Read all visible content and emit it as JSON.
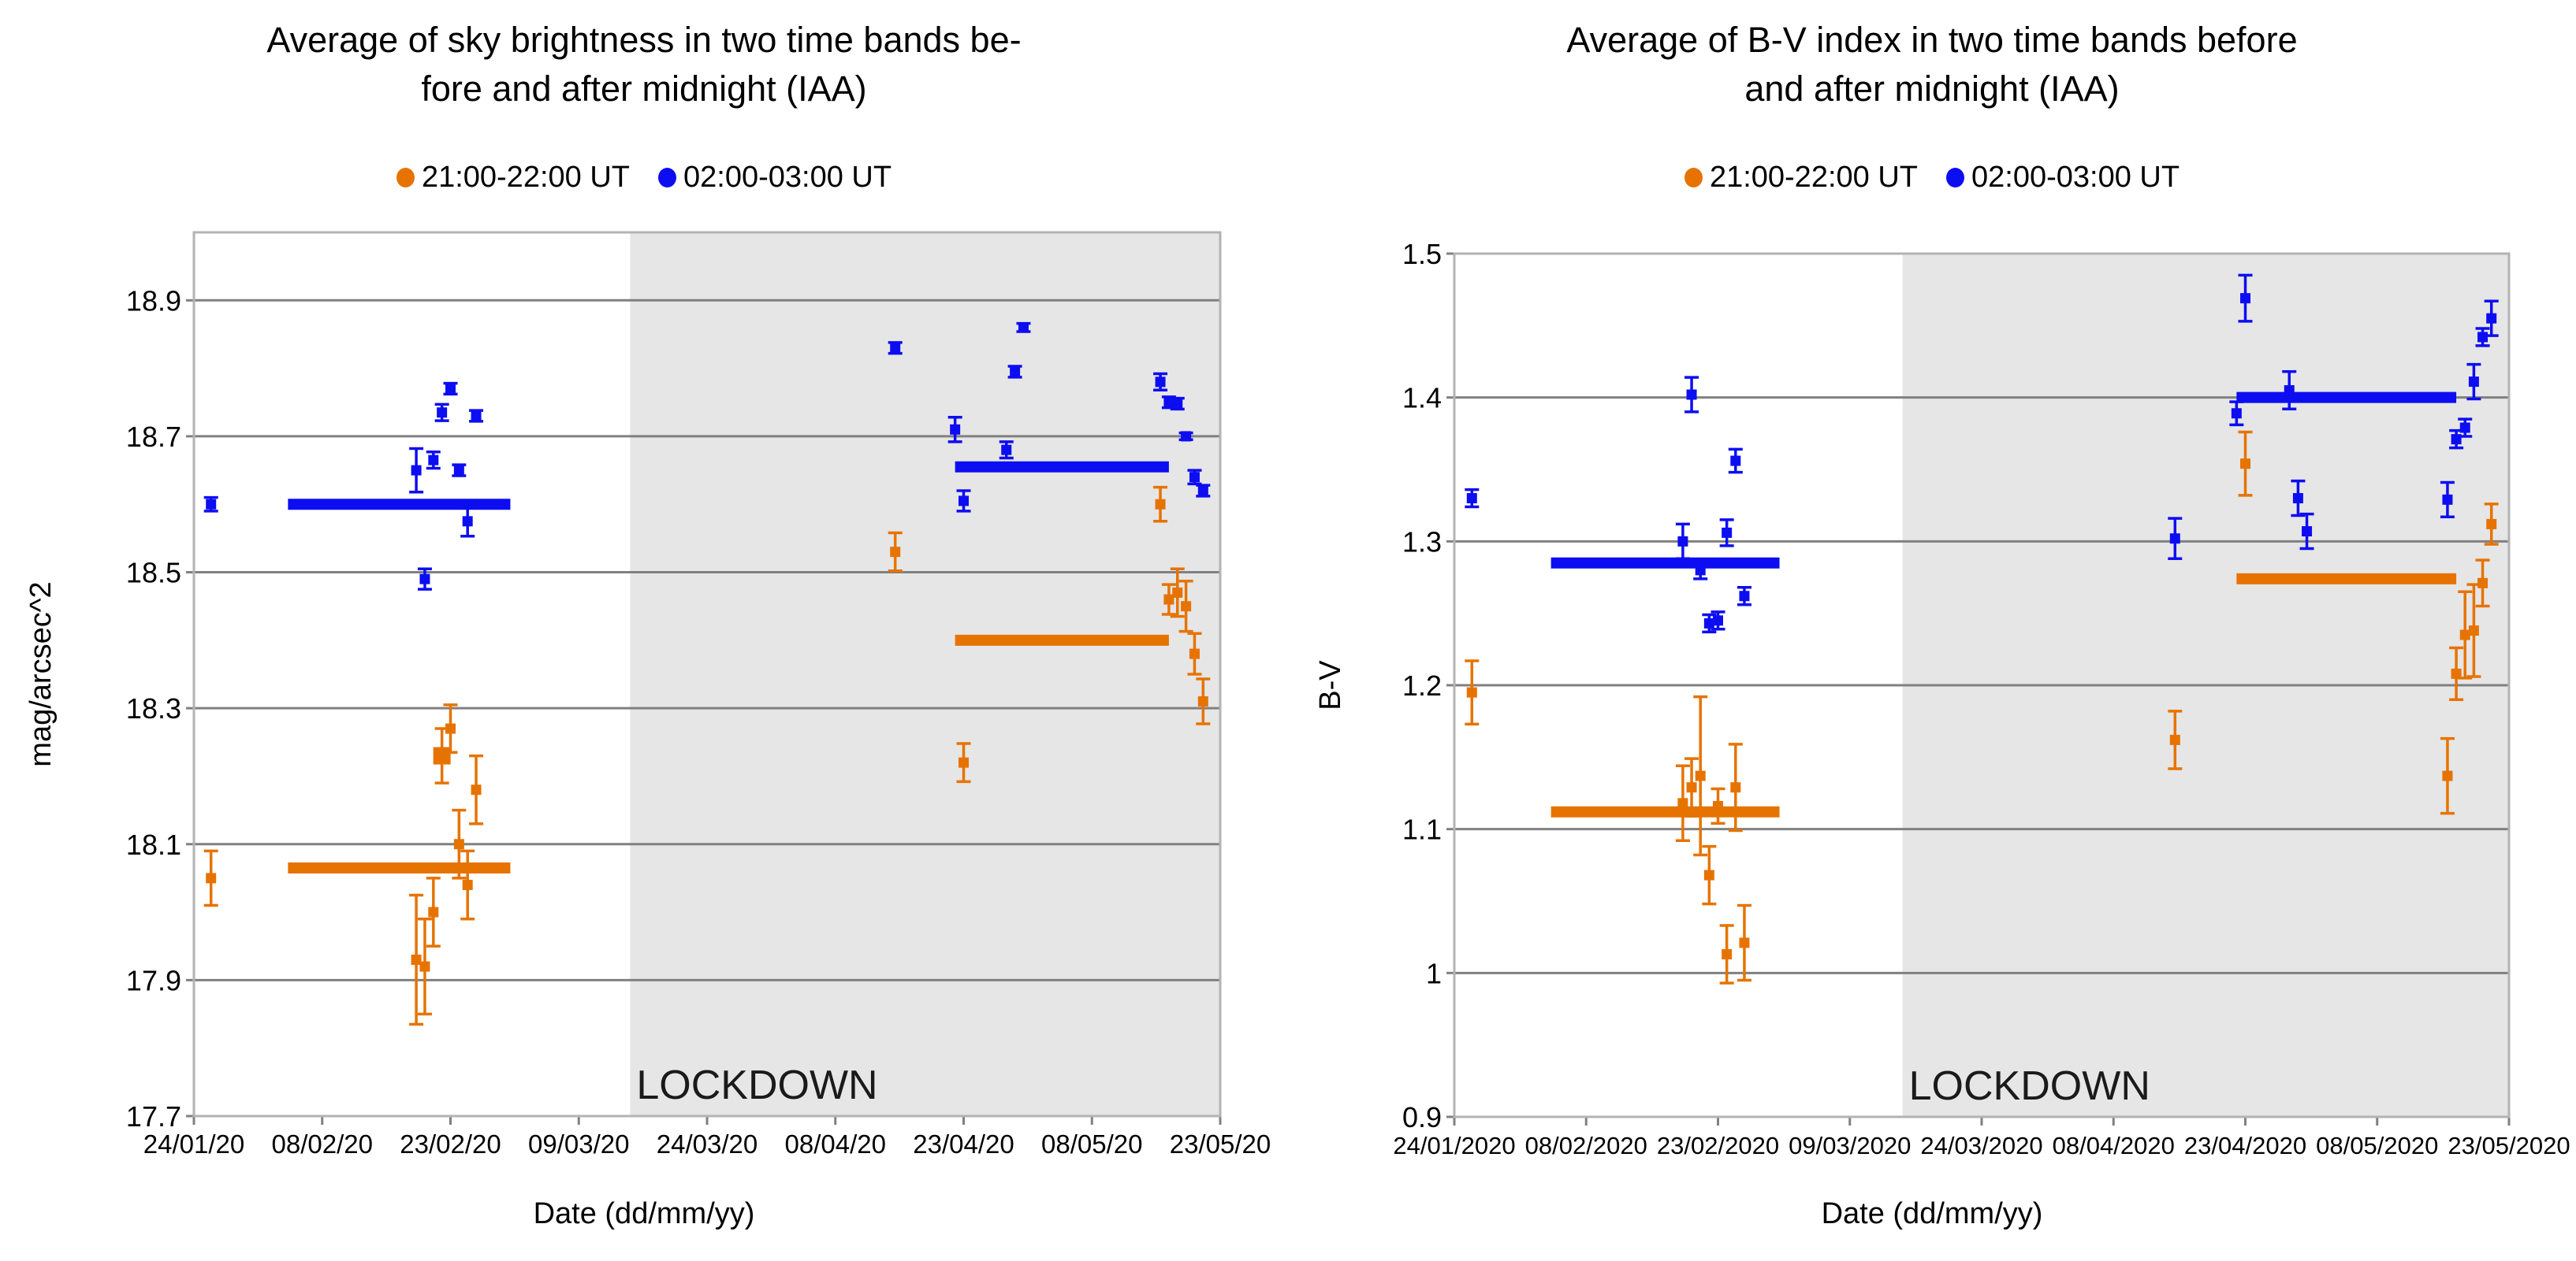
{
  "colors": {
    "evening": "#e67300",
    "morning": "#0d0df2",
    "lockdown_region": "#e6e6e6",
    "gridline": "#808080",
    "plot_border": "#b3b3b3",
    "text": "#000000",
    "lockdown_text": "#1a1a1a"
  },
  "chart_data": [
    {
      "type": "scatter",
      "title_line1": "Average of sky brightness in two time bands be-",
      "title_line2": "fore and after midnight (IAA)",
      "legend": [
        {
          "label": "21:00-22:00 UT",
          "color": "#e67300"
        },
        {
          "label": "02:00-03:00 UT",
          "color": "#0d0df2"
        }
      ],
      "y_axis": {
        "title": "mag/arcsec^2",
        "min": 17.7,
        "max": 19.0,
        "ticks": [
          {
            "label": "18.9",
            "value": 18.9
          },
          {
            "label": "18.7",
            "value": 18.7
          },
          {
            "label": "18.5",
            "value": 18.5
          },
          {
            "label": "18.3",
            "value": 18.3
          },
          {
            "label": "18.1",
            "value": 18.1
          },
          {
            "label": "17.9",
            "value": 17.9
          },
          {
            "label": "17.7",
            "value": 17.7
          }
        ]
      },
      "x_axis": {
        "title": "Date (dd/mm/yy)",
        "day_range": [
          0,
          120
        ],
        "ticks": [
          {
            "label": "24/01/20",
            "day": 0
          },
          {
            "label": "08/02/20",
            "day": 15
          },
          {
            "label": "23/02/20",
            "day": 30
          },
          {
            "label": "09/03/20",
            "day": 45
          },
          {
            "label": "24/03/20",
            "day": 60
          },
          {
            "label": "08/04/20",
            "day": 75
          },
          {
            "label": "23/04/20",
            "day": 90
          },
          {
            "label": "08/05/20",
            "day": 105
          },
          {
            "label": "23/05/20",
            "day": 120
          }
        ]
      },
      "lockdown": {
        "label": "LOCKDOWN",
        "start_date": "15/03/20",
        "start_day": 51
      },
      "series": [
        {
          "name": "21:00-22:00 UT",
          "color": "#e67300",
          "points": [
            {
              "date": "26/01/20",
              "day": 2,
              "value": 18.05,
              "err": 0.04
            },
            {
              "date": "19/02/20",
              "day": 26,
              "value": 17.93,
              "err": 0.095
            },
            {
              "date": "20/02/20",
              "day": 27,
              "value": 17.92,
              "err": 0.07
            },
            {
              "date": "21/02/20",
              "day": 28,
              "value": 18.0,
              "err": 0.05
            },
            {
              "date": "22/02/20",
              "day": 29,
              "value": 18.23,
              "err": 0.04,
              "marker_size": 22
            },
            {
              "date": "23/02/20",
              "day": 30,
              "value": 18.27,
              "err": 0.035
            },
            {
              "date": "24/02/20",
              "day": 31,
              "value": 18.1,
              "err": 0.05
            },
            {
              "date": "25/02/20",
              "day": 32,
              "value": 18.04,
              "err": 0.05
            },
            {
              "date": "26/02/20",
              "day": 33,
              "value": 18.18,
              "err": 0.05
            },
            {
              "date": "15/04/20",
              "day": 82,
              "value": 18.53,
              "err": 0.028
            },
            {
              "date": "23/04/20",
              "day": 90,
              "value": 18.22,
              "err": 0.028
            },
            {
              "date": "16/05/20",
              "day": 113,
              "value": 18.6,
              "err": 0.025
            },
            {
              "date": "17/05/20",
              "day": 114,
              "value": 18.46,
              "err": 0.022
            },
            {
              "date": "18/05/20",
              "day": 115,
              "value": 18.47,
              "err": 0.035
            },
            {
              "date": "19/05/20",
              "day": 116,
              "value": 18.45,
              "err": 0.037
            },
            {
              "date": "20/05/20",
              "day": 117,
              "value": 18.38,
              "err": 0.03
            },
            {
              "date": "21/05/20",
              "day": 118,
              "value": 18.31,
              "err": 0.033
            }
          ],
          "mean_lines": [
            {
              "period": "pre-lockdown",
              "value": 18.065,
              "from_day": 11,
              "to_day": 37
            },
            {
              "period": "lockdown",
              "value": 18.4,
              "from_day": 89,
              "to_day": 114
            }
          ]
        },
        {
          "name": "02:00-03:00 UT",
          "color": "#0d0df2",
          "points": [
            {
              "date": "26/01/20",
              "day": 2,
              "value": 18.6,
              "err": 0.01
            },
            {
              "date": "19/02/20",
              "day": 26,
              "value": 18.65,
              "err": 0.032
            },
            {
              "date": "20/02/20",
              "day": 27,
              "value": 18.49,
              "err": 0.015
            },
            {
              "date": "21/02/20",
              "day": 28,
              "value": 18.665,
              "err": 0.012
            },
            {
              "date": "22/02/20",
              "day": 29,
              "value": 18.735,
              "err": 0.012
            },
            {
              "date": "23/02/20",
              "day": 30,
              "value": 18.77,
              "err": 0.008
            },
            {
              "date": "24/02/20",
              "day": 31,
              "value": 18.65,
              "err": 0.008
            },
            {
              "date": "25/02/20",
              "day": 32,
              "value": 18.575,
              "err": 0.022
            },
            {
              "date": "26/02/20",
              "day": 33,
              "value": 18.73,
              "err": 0.008
            },
            {
              "date": "15/04/20",
              "day": 82,
              "value": 18.83,
              "err": 0.008
            },
            {
              "date": "22/04/20",
              "day": 89,
              "value": 18.71,
              "err": 0.018
            },
            {
              "date": "23/04/20",
              "day": 90,
              "value": 18.605,
              "err": 0.015
            },
            {
              "date": "28/04/20",
              "day": 95,
              "value": 18.68,
              "err": 0.012
            },
            {
              "date": "29/04/20",
              "day": 96,
              "value": 18.795,
              "err": 0.008
            },
            {
              "date": "30/04/20",
              "day": 97,
              "value": 18.86,
              "err": 0.006
            },
            {
              "date": "16/05/20",
              "day": 113,
              "value": 18.78,
              "err": 0.012
            },
            {
              "date": "17/05/20",
              "day": 114,
              "value": 18.75,
              "err": 0.008
            },
            {
              "date": "18/05/20",
              "day": 115,
              "value": 18.748,
              "err": 0.008
            },
            {
              "date": "19/05/20",
              "day": 116,
              "value": 18.7,
              "err": 0.005
            },
            {
              "date": "20/05/20",
              "day": 117,
              "value": 18.64,
              "err": 0.01
            },
            {
              "date": "21/05/20",
              "day": 118,
              "value": 18.62,
              "err": 0.008
            }
          ],
          "mean_lines": [
            {
              "period": "pre-lockdown",
              "value": 18.6,
              "from_day": 11,
              "to_day": 37
            },
            {
              "period": "lockdown",
              "value": 18.655,
              "from_day": 89,
              "to_day": 114
            }
          ]
        }
      ]
    },
    {
      "type": "scatter",
      "title_line1": "Average of B-V index in two time bands before",
      "title_line2": "and after midnight (IAA)",
      "legend": [
        {
          "label": "21:00-22:00 UT",
          "color": "#e67300"
        },
        {
          "label": "02:00-03:00 UT",
          "color": "#0d0df2"
        }
      ],
      "y_axis": {
        "title": "B-V",
        "min": 0.9,
        "max": 1.5,
        "ticks": [
          {
            "label": "1.5",
            "value": 1.5
          },
          {
            "label": "1.4",
            "value": 1.4
          },
          {
            "label": "1.3",
            "value": 1.3
          },
          {
            "label": "1.2",
            "value": 1.2
          },
          {
            "label": "1.1",
            "value": 1.1
          },
          {
            "label": "1",
            "value": 1.0
          },
          {
            "label": "0.9",
            "value": 0.9
          }
        ]
      },
      "x_axis": {
        "title": "Date (dd/mm/yy)",
        "day_range": [
          0,
          120
        ],
        "ticks": [
          {
            "label": "24/01/2020",
            "day": 0
          },
          {
            "label": "08/02/2020",
            "day": 15
          },
          {
            "label": "23/02/2020",
            "day": 30
          },
          {
            "label": "09/03/2020",
            "day": 45
          },
          {
            "label": "24/03/2020",
            "day": 60
          },
          {
            "label": "08/04/2020",
            "day": 75
          },
          {
            "label": "23/04/2020",
            "day": 90
          },
          {
            "label": "08/05/2020",
            "day": 105
          },
          {
            "label": "23/05/2020",
            "day": 120
          }
        ]
      },
      "lockdown": {
        "label": "LOCKDOWN",
        "start_date": "15/03/20",
        "start_day": 51
      },
      "series": [
        {
          "name": "21:00-22:00 UT",
          "color": "#e67300",
          "points": [
            {
              "date": "26/01/2020",
              "day": 2,
              "value": 1.195,
              "err": 0.022
            },
            {
              "date": "19/02/2020",
              "day": 26,
              "value": 1.118,
              "err": 0.026
            },
            {
              "date": "20/02/2020",
              "day": 27,
              "value": 1.129,
              "err": 0.02
            },
            {
              "date": "21/02/2020",
              "day": 28,
              "value": 1.137,
              "err": 0.055
            },
            {
              "date": "22/02/2020",
              "day": 29,
              "value": 1.068,
              "err": 0.02
            },
            {
              "date": "23/02/2020",
              "day": 30,
              "value": 1.116,
              "err": 0.012
            },
            {
              "date": "24/02/2020",
              "day": 31,
              "value": 1.013,
              "err": 0.02
            },
            {
              "date": "25/02/2020",
              "day": 32,
              "value": 1.129,
              "err": 0.03
            },
            {
              "date": "26/02/2020",
              "day": 33,
              "value": 1.021,
              "err": 0.026
            },
            {
              "date": "15/04/2020",
              "day": 82,
              "value": 1.162,
              "err": 0.02
            },
            {
              "date": "23/04/2020",
              "day": 90,
              "value": 1.354,
              "err": 0.022
            },
            {
              "date": "16/05/2020",
              "day": 113,
              "value": 1.137,
              "err": 0.026
            },
            {
              "date": "17/05/2020",
              "day": 114,
              "value": 1.208,
              "err": 0.018
            },
            {
              "date": "18/05/2020",
              "day": 115,
              "value": 1.235,
              "err": 0.03
            },
            {
              "date": "19/05/2020",
              "day": 116,
              "value": 1.238,
              "err": 0.032
            },
            {
              "date": "20/05/2020",
              "day": 117,
              "value": 1.271,
              "err": 0.016
            },
            {
              "date": "21/05/2020",
              "day": 118,
              "value": 1.312,
              "err": 0.014
            }
          ],
          "mean_lines": [
            {
              "period": "pre-lockdown",
              "value": 1.112,
              "from_day": 11,
              "to_day": 37
            },
            {
              "period": "lockdown",
              "value": 1.274,
              "from_day": 89,
              "to_day": 114
            }
          ]
        },
        {
          "name": "02:00-03:00 UT",
          "color": "#0d0df2",
          "points": [
            {
              "date": "26/01/2020",
              "day": 2,
              "value": 1.33,
              "err": 0.006
            },
            {
              "date": "19/02/2020",
              "day": 26,
              "value": 1.3,
              "err": 0.012
            },
            {
              "date": "20/02/2020",
              "day": 27,
              "value": 1.402,
              "err": 0.012
            },
            {
              "date": "21/02/2020",
              "day": 28,
              "value": 1.28,
              "err": 0.006
            },
            {
              "date": "22/02/2020",
              "day": 29,
              "value": 1.243,
              "err": 0.006
            },
            {
              "date": "23/02/2020",
              "day": 30,
              "value": 1.245,
              "err": 0.006
            },
            {
              "date": "24/02/2020",
              "day": 31,
              "value": 1.306,
              "err": 0.009
            },
            {
              "date": "25/02/2020",
              "day": 32,
              "value": 1.356,
              "err": 0.008
            },
            {
              "date": "26/02/2020",
              "day": 33,
              "value": 1.262,
              "err": 0.006
            },
            {
              "date": "15/04/2020",
              "day": 82,
              "value": 1.302,
              "err": 0.014
            },
            {
              "date": "22/04/2020",
              "day": 89,
              "value": 1.389,
              "err": 0.008
            },
            {
              "date": "23/04/2020",
              "day": 90,
              "value": 1.469,
              "err": 0.016
            },
            {
              "date": "28/04/2020",
              "day": 95,
              "value": 1.405,
              "err": 0.013
            },
            {
              "date": "29/04/2020",
              "day": 96,
              "value": 1.33,
              "err": 0.012
            },
            {
              "date": "30/04/2020",
              "day": 97,
              "value": 1.307,
              "err": 0.012
            },
            {
              "date": "16/05/2020",
              "day": 113,
              "value": 1.329,
              "err": 0.012
            },
            {
              "date": "17/05/2020",
              "day": 114,
              "value": 1.371,
              "err": 0.006
            },
            {
              "date": "18/05/2020",
              "day": 115,
              "value": 1.379,
              "err": 0.006
            },
            {
              "date": "19/05/2020",
              "day": 116,
              "value": 1.411,
              "err": 0.012
            },
            {
              "date": "20/05/2020",
              "day": 117,
              "value": 1.442,
              "err": 0.006
            },
            {
              "date": "21/05/2020",
              "day": 118,
              "value": 1.455,
              "err": 0.012
            }
          ],
          "mean_lines": [
            {
              "period": "pre-lockdown",
              "value": 1.285,
              "from_day": 11,
              "to_day": 37
            },
            {
              "period": "lockdown",
              "value": 1.4,
              "from_day": 89,
              "to_day": 114
            }
          ]
        }
      ]
    }
  ]
}
